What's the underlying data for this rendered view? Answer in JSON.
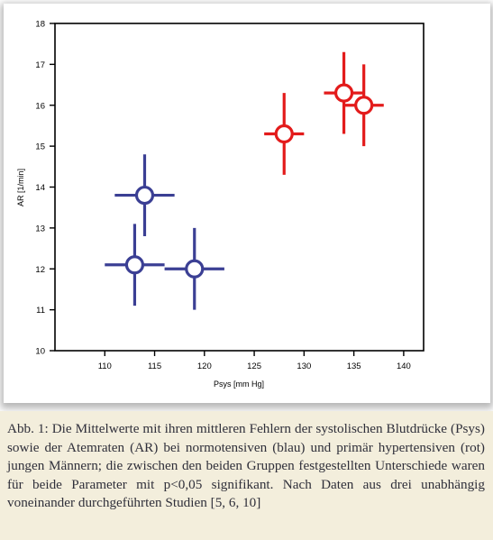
{
  "chart_data": {
    "type": "scatter",
    "title": "",
    "xlabel": "Psys [mm Hg]",
    "ylabel": "AR [1/min]",
    "xlim": [
      105,
      142
    ],
    "ylim": [
      10,
      18
    ],
    "x_ticks": [
      110,
      115,
      120,
      125,
      130,
      135,
      140
    ],
    "y_ticks": [
      10,
      11,
      12,
      13,
      14,
      15,
      16,
      17,
      18
    ],
    "grid": false,
    "legend": "none",
    "series": [
      {
        "color": "#3b3f94",
        "points": [
          {
            "x": 114,
            "y": 13.8,
            "x_err": 3.0,
            "y_err": 1.0
          },
          {
            "x": 113,
            "y": 12.1,
            "x_err": 3.0,
            "y_err": 1.0
          },
          {
            "x": 119,
            "y": 12.0,
            "x_err": 3.0,
            "y_err": 1.0
          }
        ]
      },
      {
        "color": "#e31b1b",
        "points": [
          {
            "x": 128,
            "y": 15.3,
            "x_err": 2.0,
            "y_err": 1.0
          },
          {
            "x": 134,
            "y": 16.3,
            "x_err": 2.0,
            "y_err": 1.0
          },
          {
            "x": 136,
            "y": 16.0,
            "x_err": 2.0,
            "y_err": 1.0
          }
        ]
      }
    ]
  },
  "caption": "Abb. 1: Die Mittelwerte mit ihren mittleren Fehlern der systolischen Blutdrücke (Psys) sowie der Atemraten (AR) bei normotensiven (blau) und primär hypertensiven (rot) jungen Männern; die zwischen den beiden Gruppen festgestellten Unterschiede waren für beide Parameter mit p<0,05 signifikant. Nach Daten aus drei unabhängig voneinander durchgeführten Studien [5, 6, 10]"
}
